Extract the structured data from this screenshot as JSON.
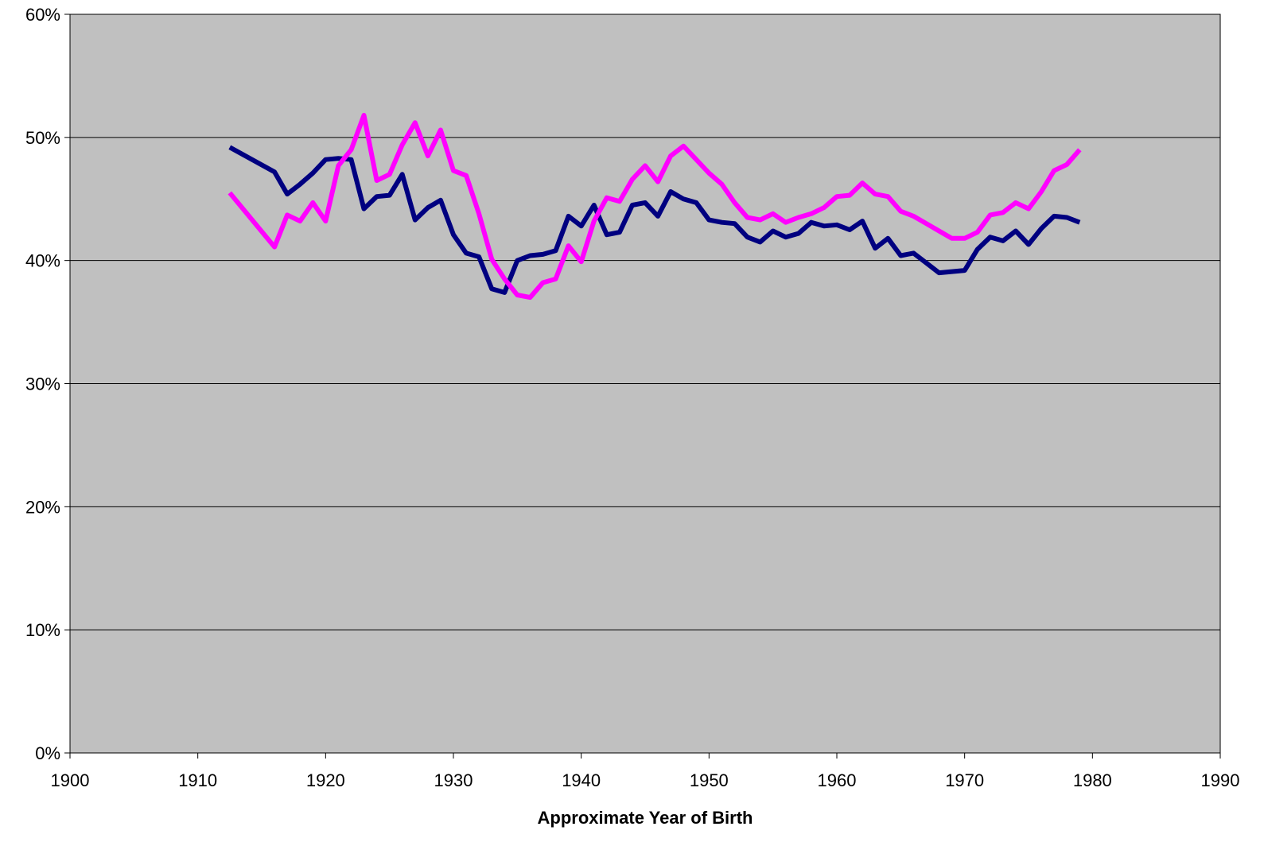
{
  "chart_data": {
    "type": "line",
    "title": "",
    "xlabel": "Approximate Year of Birth",
    "ylabel": "",
    "xlim": [
      1900,
      1990
    ],
    "ylim": [
      0,
      60
    ],
    "x_ticks": [
      1900,
      1910,
      1920,
      1930,
      1940,
      1950,
      1960,
      1970,
      1980,
      1990
    ],
    "y_ticks": [
      0,
      10,
      20,
      30,
      40,
      50,
      60
    ],
    "y_tick_labels": [
      "0%",
      "10%",
      "20%",
      "30%",
      "40%",
      "50%",
      "60%"
    ],
    "x_tick_labels": [
      "1900",
      "1910",
      "1920",
      "1930",
      "1940",
      "1950",
      "1960",
      "1970",
      "1980",
      "1990"
    ],
    "grid": "horizontal",
    "plot_background": "#c0c0c0",
    "legend": "none",
    "series": [
      {
        "color": "#000080",
        "points": [
          [
            1912.5,
            49.2
          ],
          [
            1916,
            47.2
          ],
          [
            1917,
            45.4
          ],
          [
            1918,
            46.2
          ],
          [
            1919,
            47.1
          ],
          [
            1920,
            48.2
          ],
          [
            1921,
            48.3
          ],
          [
            1922,
            48.2
          ],
          [
            1923,
            44.2
          ],
          [
            1924,
            45.2
          ],
          [
            1925,
            45.3
          ],
          [
            1926,
            47.0
          ],
          [
            1927,
            43.3
          ],
          [
            1928,
            44.3
          ],
          [
            1929,
            44.9
          ],
          [
            1930,
            42.1
          ],
          [
            1931,
            40.6
          ],
          [
            1932,
            40.3
          ],
          [
            1933,
            37.7
          ],
          [
            1934,
            37.4
          ],
          [
            1935,
            40.0
          ],
          [
            1936,
            40.4
          ],
          [
            1937,
            40.5
          ],
          [
            1938,
            40.8
          ],
          [
            1939,
            43.6
          ],
          [
            1940,
            42.8
          ],
          [
            1941,
            44.5
          ],
          [
            1942,
            42.1
          ],
          [
            1943,
            42.3
          ],
          [
            1944,
            44.5
          ],
          [
            1945,
            44.7
          ],
          [
            1946,
            43.6
          ],
          [
            1947,
            45.6
          ],
          [
            1948,
            45.0
          ],
          [
            1949,
            44.7
          ],
          [
            1950,
            43.3
          ],
          [
            1951,
            43.1
          ],
          [
            1952,
            43.0
          ],
          [
            1953,
            41.9
          ],
          [
            1954,
            41.5
          ],
          [
            1955,
            42.4
          ],
          [
            1956,
            41.9
          ],
          [
            1957,
            42.2
          ],
          [
            1958,
            43.1
          ],
          [
            1959,
            42.8
          ],
          [
            1960,
            42.9
          ],
          [
            1961,
            42.5
          ],
          [
            1962,
            43.2
          ],
          [
            1963,
            41.0
          ],
          [
            1964,
            41.8
          ],
          [
            1965,
            40.4
          ],
          [
            1966,
            40.6
          ],
          [
            1967,
            39.8
          ],
          [
            1968,
            39.0
          ],
          [
            1969,
            39.1
          ],
          [
            1970,
            39.2
          ],
          [
            1971,
            40.9
          ],
          [
            1972,
            41.9
          ],
          [
            1973,
            41.6
          ],
          [
            1974,
            42.4
          ],
          [
            1975,
            41.3
          ],
          [
            1976,
            42.6
          ],
          [
            1977,
            43.6
          ],
          [
            1978,
            43.5
          ],
          [
            1979,
            43.1
          ]
        ]
      },
      {
        "color": "#ff00ff",
        "points": [
          [
            1912.5,
            45.5
          ],
          [
            1916,
            41.1
          ],
          [
            1917,
            43.7
          ],
          [
            1918,
            43.2
          ],
          [
            1919,
            44.7
          ],
          [
            1920,
            43.2
          ],
          [
            1921,
            47.7
          ],
          [
            1922,
            49.0
          ],
          [
            1923,
            51.8
          ],
          [
            1924,
            46.5
          ],
          [
            1925,
            47.0
          ],
          [
            1926,
            49.4
          ],
          [
            1927,
            51.2
          ],
          [
            1928,
            48.5
          ],
          [
            1929,
            50.6
          ],
          [
            1930,
            47.3
          ],
          [
            1931,
            46.9
          ],
          [
            1932,
            43.8
          ],
          [
            1933,
            40.1
          ],
          [
            1934,
            38.5
          ],
          [
            1935,
            37.2
          ],
          [
            1936,
            37.0
          ],
          [
            1937,
            38.2
          ],
          [
            1938,
            38.5
          ],
          [
            1939,
            41.2
          ],
          [
            1940,
            39.9
          ],
          [
            1941,
            43.2
          ],
          [
            1942,
            45.1
          ],
          [
            1943,
            44.8
          ],
          [
            1944,
            46.6
          ],
          [
            1945,
            47.7
          ],
          [
            1946,
            46.4
          ],
          [
            1947,
            48.5
          ],
          [
            1948,
            49.3
          ],
          [
            1949,
            48.2
          ],
          [
            1950,
            47.1
          ],
          [
            1951,
            46.2
          ],
          [
            1952,
            44.7
          ],
          [
            1953,
            43.5
          ],
          [
            1954,
            43.3
          ],
          [
            1955,
            43.8
          ],
          [
            1956,
            43.1
          ],
          [
            1957,
            43.5
          ],
          [
            1958,
            43.8
          ],
          [
            1959,
            44.3
          ],
          [
            1960,
            45.2
          ],
          [
            1961,
            45.3
          ],
          [
            1962,
            46.3
          ],
          [
            1963,
            45.4
          ],
          [
            1964,
            45.2
          ],
          [
            1965,
            44.0
          ],
          [
            1966,
            43.6
          ],
          [
            1967,
            43.0
          ],
          [
            1968,
            42.4
          ],
          [
            1969,
            41.8
          ],
          [
            1970,
            41.8
          ],
          [
            1971,
            42.3
          ],
          [
            1972,
            43.7
          ],
          [
            1973,
            43.9
          ],
          [
            1974,
            44.7
          ],
          [
            1975,
            44.2
          ],
          [
            1976,
            45.6
          ],
          [
            1977,
            47.3
          ],
          [
            1978,
            47.8
          ],
          [
            1979,
            49.0
          ]
        ]
      }
    ]
  }
}
